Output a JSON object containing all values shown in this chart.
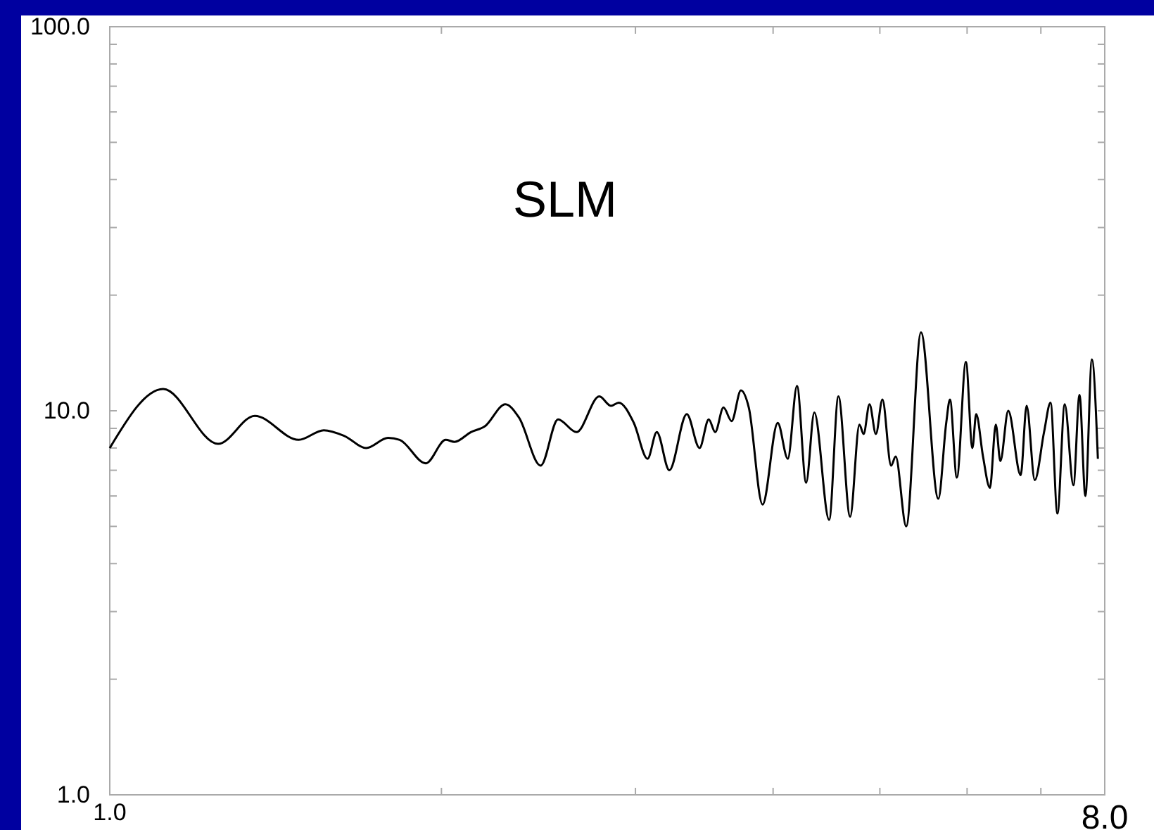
{
  "chart_data": {
    "type": "line",
    "log": "xy",
    "xlim": [
      1,
      8
    ],
    "ylim": [
      1,
      100
    ],
    "xticks": [
      {
        "value": 1,
        "label": "1.0"
      },
      {
        "value": 2,
        "label": null
      },
      {
        "value": 3,
        "label": null
      },
      {
        "value": 4,
        "label": null
      },
      {
        "value": 5,
        "label": null
      },
      {
        "value": 6,
        "label": null
      },
      {
        "value": 7,
        "label": null
      },
      {
        "value": 8,
        "label": "8.0"
      }
    ],
    "yticks": [
      {
        "value": 1,
        "label": "1.0"
      },
      {
        "value": 2,
        "label": null
      },
      {
        "value": 3,
        "label": null
      },
      {
        "value": 4,
        "label": null
      },
      {
        "value": 5,
        "label": null
      },
      {
        "value": 6,
        "label": null
      },
      {
        "value": 7,
        "label": null
      },
      {
        "value": 8,
        "label": null
      },
      {
        "value": 9,
        "label": null
      },
      {
        "value": 10,
        "label": "10.0"
      },
      {
        "value": 20,
        "label": null
      },
      {
        "value": 30,
        "label": null
      },
      {
        "value": 40,
        "label": null
      },
      {
        "value": 50,
        "label": null
      },
      {
        "value": 60,
        "label": null
      },
      {
        "value": 70,
        "label": null
      },
      {
        "value": 80,
        "label": null
      },
      {
        "value": 90,
        "label": null
      },
      {
        "value": 100,
        "label": "100.0"
      }
    ],
    "annotations": [
      "SLM"
    ],
    "series": [
      {
        "color": "#000000",
        "x": [
          1.0,
          1.118,
          1.254,
          1.354,
          1.484,
          1.564,
          1.633,
          1.709,
          1.789,
          1.833,
          1.936,
          2.018,
          2.056,
          2.127,
          2.189,
          2.286,
          2.352,
          2.461,
          2.552,
          2.652,
          2.782,
          2.85,
          2.897,
          2.99,
          3.077,
          3.137,
          3.22,
          3.34,
          3.43,
          3.497,
          3.544,
          3.606,
          3.668,
          3.74,
          3.802,
          3.913,
          4.039,
          4.125,
          4.205,
          4.286,
          4.36,
          4.497,
          4.585,
          4.699,
          4.791,
          4.833,
          4.893,
          4.959,
          5.027,
          5.119,
          5.168,
          5.283,
          5.449,
          5.65,
          5.744,
          5.789,
          5.873,
          5.985,
          6.067,
          6.115,
          6.203,
          6.293,
          6.371,
          6.432,
          6.539,
          6.711,
          6.795,
          6.912,
          7.047,
          7.143,
          7.247,
          7.358,
          7.493,
          7.589,
          7.683,
          7.788,
          7.886
        ],
        "values": [
          8.0,
          11.4,
          8.2,
          9.7,
          8.4,
          8.9,
          8.6,
          8.0,
          8.5,
          8.4,
          7.3,
          8.4,
          8.3,
          8.8,
          9.1,
          10.4,
          9.6,
          7.2,
          9.5,
          8.8,
          10.9,
          10.3,
          10.5,
          9.3,
          7.5,
          8.8,
          7.0,
          9.8,
          8.0,
          9.5,
          8.8,
          10.2,
          9.4,
          11.3,
          10.2,
          5.7,
          9.3,
          7.5,
          11.6,
          6.5,
          9.9,
          5.2,
          10.9,
          5.3,
          9.2,
          8.7,
          10.4,
          8.7,
          10.7,
          7.2,
          7.6,
          5.0,
          16.0,
          5.9,
          9.3,
          10.7,
          6.7,
          13.4,
          8.0,
          9.8,
          7.6,
          6.3,
          9.2,
          7.4,
          10.0,
          6.8,
          10.3,
          6.6,
          8.8,
          10.5,
          5.4,
          10.4,
          6.4,
          11.0,
          6.0,
          13.6,
          7.5
        ]
      }
    ]
  }
}
